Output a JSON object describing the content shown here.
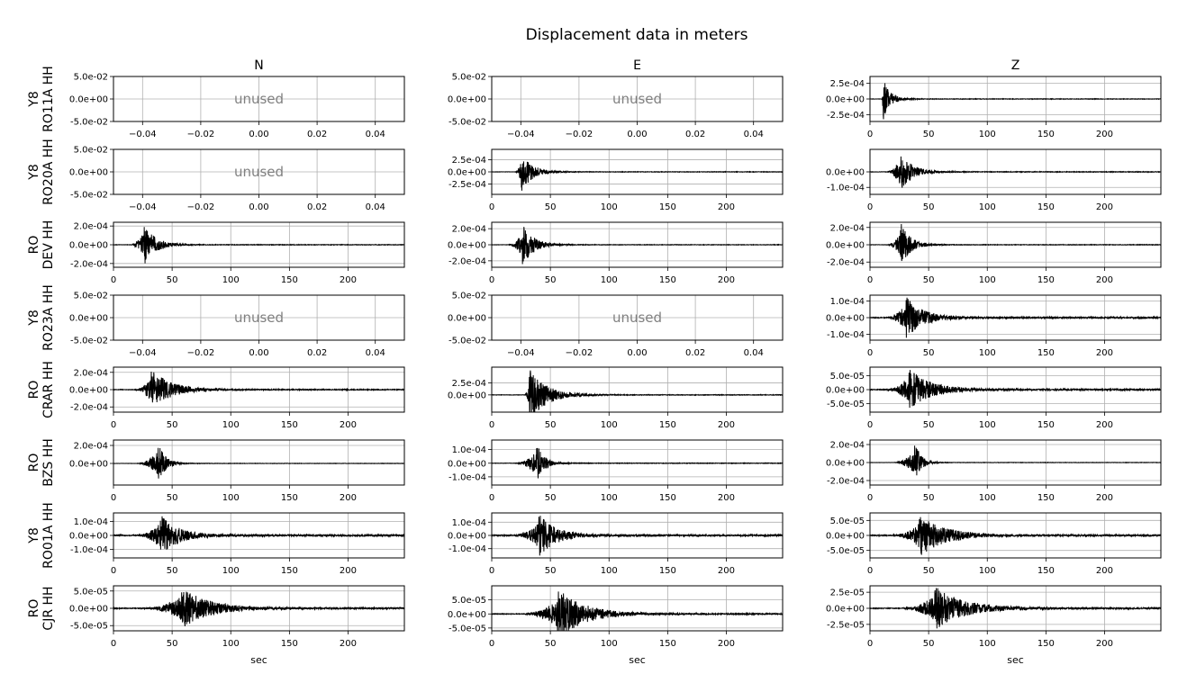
{
  "chart_data": {
    "type": "line",
    "title": "Displacement data in meters",
    "columns": [
      "N",
      "E",
      "Z"
    ],
    "xlabel": "sec",
    "grid": true,
    "rows": [
      {
        "label_lines": [
          "Y8",
          "RO11A HH"
        ],
        "panels": [
          {
            "unused": true,
            "text": "unused",
            "xlim": [
              -0.05,
              0.05
            ],
            "ylim": [
              -0.05,
              0.05
            ],
            "xticks": [
              "−0.04",
              "−0.02",
              "0.00",
              "0.02",
              "0.04"
            ],
            "yticks": [
              "5.0e-02",
              "0.0e+00",
              "-5.0e-02"
            ]
          },
          {
            "unused": true,
            "text": "unused",
            "xlim": [
              -0.05,
              0.05
            ],
            "ylim": [
              -0.05,
              0.05
            ],
            "xticks": [
              "−0.04",
              "−0.02",
              "0.00",
              "0.02",
              "0.04"
            ],
            "yticks": [
              "5.0e-02",
              "0.0e+00",
              "-5.0e-02"
            ]
          },
          {
            "unused": false,
            "xlim": [
              0,
              248
            ],
            "ylim": [
              -0.00036,
              0.00036
            ],
            "xticks": [
              "0",
              "50",
              "100",
              "150",
              "200"
            ],
            "yticks": [
              "2.5e-04",
              "0.0e+00",
              "-2.5e-04"
            ],
            "onset": 10,
            "peak_time": 11,
            "peak_amp": 0.00036,
            "decay": 6,
            "noise": 4e-06
          }
        ]
      },
      {
        "label_lines": [
          "Y8",
          "RO20A HH"
        ],
        "panels": [
          {
            "unused": true,
            "text": "unused",
            "xlim": [
              -0.05,
              0.05
            ],
            "ylim": [
              -0.05,
              0.05
            ],
            "xticks": [
              "−0.04",
              "−0.02",
              "0.00",
              "0.02",
              "0.04"
            ],
            "yticks": [
              "5.0e-02",
              "0.0e+00",
              "-5.0e-02"
            ]
          },
          {
            "unused": false,
            "xlim": [
              0,
              248
            ],
            "ylim": [
              -0.00046,
              0.00046
            ],
            "xticks": [
              "0",
              "50",
              "100",
              "150",
              "200"
            ],
            "yticks": [
              "2.5e-04",
              "0.0e+00",
              "-2.5e-04"
            ],
            "onset": 20,
            "peak_time": 25,
            "peak_amp": 0.00042,
            "decay": 9,
            "noise": 5e-06
          },
          {
            "unused": false,
            "xlim": [
              0,
              248
            ],
            "ylim": [
              -0.000145,
              0.000145
            ],
            "xticks": [
              "0",
              "50",
              "100",
              "150",
              "200"
            ],
            "yticks": [
              "0.0e+00",
              "-1.0e-04"
            ],
            "onset": 14,
            "peak_time": 25,
            "peak_amp": 0.000135,
            "decay": 10,
            "noise": 2e-06
          }
        ]
      },
      {
        "label_lines": [
          "RO",
          "DEV HH"
        ],
        "panels": [
          {
            "unused": false,
            "xlim": [
              0,
              248
            ],
            "ylim": [
              -0.00024,
              0.00024
            ],
            "xticks": [
              "0",
              "50",
              "100",
              "150",
              "200"
            ],
            "yticks": [
              "2.0e-04",
              "0.0e+00",
              "-2.0e-04"
            ],
            "onset": 14,
            "peak_time": 26,
            "peak_amp": 0.00024,
            "decay": 9,
            "noise": 3e-06
          },
          {
            "unused": false,
            "xlim": [
              0,
              248
            ],
            "ylim": [
              -0.00028,
              0.00028
            ],
            "xticks": [
              "0",
              "50",
              "100",
              "150",
              "200"
            ],
            "yticks": [
              "2.0e-04",
              "0.0e+00",
              "-2.0e-04"
            ],
            "onset": 14,
            "peak_time": 26,
            "peak_amp": 0.00028,
            "decay": 9,
            "noise": 3e-06
          },
          {
            "unused": false,
            "xlim": [
              0,
              248
            ],
            "ylim": [
              -0.00026,
              0.00026
            ],
            "xticks": [
              "0",
              "50",
              "100",
              "150",
              "200"
            ],
            "yticks": [
              "2.0e-04",
              "0.0e+00",
              "-2.0e-04"
            ],
            "onset": 14,
            "peak_time": 26,
            "peak_amp": 0.00026,
            "decay": 8,
            "noise": 3e-06
          }
        ]
      },
      {
        "label_lines": [
          "Y8",
          "RO23A HH"
        ],
        "panels": [
          {
            "unused": true,
            "text": "unused",
            "xlim": [
              -0.05,
              0.05
            ],
            "ylim": [
              -0.05,
              0.05
            ],
            "xticks": [
              "−0.04",
              "−0.02",
              "0.00",
              "0.02",
              "0.04"
            ],
            "yticks": [
              "5.0e-02",
              "0.0e+00",
              "-5.0e-02"
            ]
          },
          {
            "unused": true,
            "text": "unused",
            "xlim": [
              -0.05,
              0.05
            ],
            "ylim": [
              -0.05,
              0.05
            ],
            "xticks": [
              "−0.04",
              "−0.02",
              "0.00",
              "0.02",
              "0.04"
            ],
            "yticks": [
              "5.0e-02",
              "0.0e+00",
              "-5.0e-02"
            ]
          },
          {
            "unused": false,
            "xlim": [
              0,
              248
            ],
            "ylim": [
              -0.000135,
              0.000135
            ],
            "xticks": [
              "0",
              "50",
              "100",
              "150",
              "200"
            ],
            "yticks": [
              "1.0e-04",
              "0.0e+00",
              "-1.0e-04"
            ],
            "onset": 14,
            "peak_time": 30,
            "peak_amp": 0.00013,
            "decay": 14,
            "noise": 4e-06
          }
        ]
      },
      {
        "label_lines": [
          "RO",
          "CRAR HH"
        ],
        "panels": [
          {
            "unused": false,
            "xlim": [
              0,
              248
            ],
            "ylim": [
              -0.00026,
              0.00026
            ],
            "xticks": [
              "0",
              "50",
              "100",
              "150",
              "200"
            ],
            "yticks": [
              "2.0e-04",
              "0.0e+00",
              "-2.0e-04"
            ],
            "onset": 18,
            "peak_time": 32,
            "peak_amp": 0.00024,
            "decay": 16,
            "noise": 5e-06
          },
          {
            "unused": false,
            "xlim": [
              0,
              248
            ],
            "ylim": [
              -0.00036,
              0.00058
            ],
            "xticks": [
              "0",
              "50",
              "100",
              "150",
              "200"
            ],
            "yticks": [
              "2.5e-04",
              "0.0e+00"
            ],
            "onset": 28,
            "peak_time": 32,
            "peak_amp": 0.00056,
            "decay": 14,
            "noise": 6e-06
          },
          {
            "unused": false,
            "xlim": [
              0,
              248
            ],
            "ylim": [
              -8e-05,
              8e-05
            ],
            "xticks": [
              "0",
              "50",
              "100",
              "150",
              "200"
            ],
            "yticks": [
              "5.0e-05",
              "0.0e+00",
              "-5.0e-05"
            ],
            "onset": 14,
            "peak_time": 33,
            "peak_amp": 7.5e-05,
            "decay": 18,
            "noise": 2.5e-06
          }
        ]
      },
      {
        "label_lines": [
          "RO",
          "BZS HH"
        ],
        "panels": [
          {
            "unused": false,
            "xlim": [
              0,
              248
            ],
            "ylim": [
              -0.00024,
              0.00026
            ],
            "xticks": [
              "0",
              "50",
              "100",
              "150",
              "200"
            ],
            "yticks": [
              "2.0e-04",
              "0.0e+00"
            ],
            "onset": 20,
            "peak_time": 38,
            "peak_amp": 0.00025,
            "decay": 6,
            "noise": 2e-06
          },
          {
            "unused": false,
            "xlim": [
              0,
              248
            ],
            "ylim": [
              -0.00016,
              0.00017
            ],
            "xticks": [
              "0",
              "50",
              "100",
              "150",
              "200"
            ],
            "yticks": [
              "1.0e-04",
              "0.0e+00",
              "-1.0e-04"
            ],
            "onset": 20,
            "peak_time": 38,
            "peak_amp": 0.00016,
            "decay": 6,
            "noise": 2e-06
          },
          {
            "unused": false,
            "xlim": [
              0,
              248
            ],
            "ylim": [
              -0.00025,
              0.00025
            ],
            "xticks": [
              "0",
              "50",
              "100",
              "150",
              "200"
            ],
            "yticks": [
              "2.0e-04",
              "0.0e+00",
              "-2.0e-04"
            ],
            "onset": 20,
            "peak_time": 38,
            "peak_amp": 0.00024,
            "decay": 5,
            "noise": 2e-06
          }
        ]
      },
      {
        "label_lines": [
          "Y8",
          "RO01A HH"
        ],
        "panels": [
          {
            "unused": false,
            "xlim": [
              0,
              248
            ],
            "ylim": [
              -0.00016,
              0.00016
            ],
            "xticks": [
              "0",
              "50",
              "100",
              "150",
              "200"
            ],
            "yticks": [
              "1.0e-04",
              "0.0e+00",
              "-1.0e-04"
            ],
            "onset": 20,
            "peak_time": 40,
            "peak_amp": 0.00015,
            "decay": 14,
            "noise": 6e-06
          },
          {
            "unused": false,
            "xlim": [
              0,
              248
            ],
            "ylim": [
              -0.00017,
              0.00017
            ],
            "xticks": [
              "0",
              "50",
              "100",
              "150",
              "200"
            ],
            "yticks": [
              "1.0e-04",
              "0.0e+00",
              "-1.0e-04"
            ],
            "onset": 20,
            "peak_time": 40,
            "peak_amp": 0.00016,
            "decay": 14,
            "noise": 6e-06
          },
          {
            "unused": false,
            "xlim": [
              0,
              248
            ],
            "ylim": [
              -7.5e-05,
              7.5e-05
            ],
            "xticks": [
              "0",
              "50",
              "100",
              "150",
              "200"
            ],
            "yticks": [
              "5.0e-05",
              "0.0e+00",
              "-5.0e-05"
            ],
            "onset": 20,
            "peak_time": 42,
            "peak_amp": 7e-05,
            "decay": 20,
            "noise": 2.5e-06
          }
        ]
      },
      {
        "label_lines": [
          "RO",
          "CJR HH"
        ],
        "panels": [
          {
            "unused": false,
            "xlim": [
              0,
              248
            ],
            "ylim": [
              -6.5e-05,
              6.5e-05
            ],
            "xticks": [
              "0",
              "50",
              "100",
              "150",
              "200"
            ],
            "yticks": [
              "5.0e-05",
              "0.0e+00",
              "-5.0e-05"
            ],
            "onset": 28,
            "peak_time": 58,
            "peak_amp": 6e-05,
            "decay": 22,
            "noise": 2e-06
          },
          {
            "unused": false,
            "xlim": [
              0,
              248
            ],
            "ylim": [
              -6e-05,
              0.0001
            ],
            "xticks": [
              "0",
              "50",
              "100",
              "150",
              "200"
            ],
            "yticks": [
              "5.0e-05",
              "0.0e+00",
              "-5.0e-05"
            ],
            "onset": 28,
            "peak_time": 56,
            "peak_amp": 9e-05,
            "decay": 22,
            "noise": 2e-06
          },
          {
            "unused": false,
            "xlim": [
              0,
              248
            ],
            "ylim": [
              -3.5e-05,
              3.5e-05
            ],
            "xticks": [
              "0",
              "50",
              "100",
              "150",
              "200"
            ],
            "yticks": [
              "2.5e-05",
              "0.0e+00",
              "-2.5e-05"
            ],
            "onset": 28,
            "peak_time": 55,
            "peak_amp": 3.4e-05,
            "decay": 24,
            "noise": 1e-06
          }
        ]
      }
    ]
  }
}
